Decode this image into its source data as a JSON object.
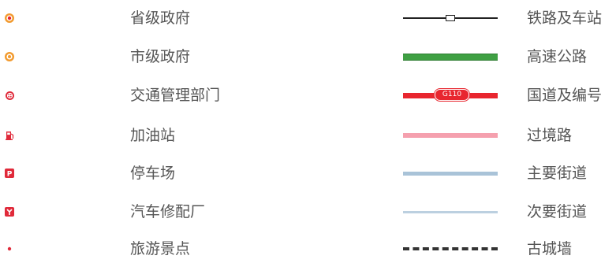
{
  "left_items": [
    {
      "label": "省级政府",
      "symbol": "provincial-government-icon"
    },
    {
      "label": "市级政府",
      "symbol": "municipal-government-icon"
    },
    {
      "label": "交通管理部门",
      "symbol": "traffic-management-icon"
    },
    {
      "label": "加油站",
      "symbol": "gas-station-icon"
    },
    {
      "label": "停车场",
      "symbol": "parking-icon"
    },
    {
      "label": "汽车修配厂",
      "symbol": "auto-repair-icon"
    },
    {
      "label": "旅游景点",
      "symbol": "tourist-attraction-icon"
    }
  ],
  "right_items": [
    {
      "label": "铁路及车站",
      "symbol": "railway-station-line"
    },
    {
      "label": "高速公路",
      "symbol": "expressway-line"
    },
    {
      "label": "国道及编号",
      "symbol": "national-road-line",
      "code": "G110"
    },
    {
      "label": "过境路",
      "symbol": "transit-road-line"
    },
    {
      "label": "主要街道",
      "symbol": "main-street-line"
    },
    {
      "label": "次要街道",
      "symbol": "minor-street-line"
    },
    {
      "label": "古城墙",
      "symbol": "ancient-city-wall-line"
    }
  ],
  "colors": {
    "government": "#f29a2e",
    "red_icon": "#e02a3a",
    "highway": "#3fa043",
    "national_road": "#e8262f",
    "transit_road": "#f5a0ae",
    "street": "#a9c3d8"
  }
}
